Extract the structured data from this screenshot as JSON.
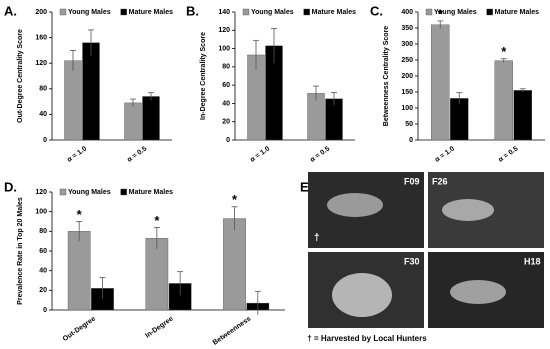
{
  "chart_data": [
    {
      "type": "bar",
      "label": "A.",
      "y_label": "Out-Degree Centrality Score",
      "categories": [
        "α = 1.0",
        "α = 0.5"
      ],
      "series": [
        {
          "name": "Young Males",
          "color": "#9a9a9a",
          "values": [
            124,
            58
          ],
          "errors": [
            16,
            6
          ]
        },
        {
          "name": "Mature Males",
          "color": "#000000",
          "values": [
            152,
            68
          ],
          "errors": [
            20,
            6
          ]
        }
      ],
      "ylim": [
        0,
        200
      ],
      "yticks": [
        0,
        40,
        80,
        120,
        160,
        200
      ]
    },
    {
      "type": "bar",
      "label": "B.",
      "y_label": "In-Degree Centrality Score",
      "categories": [
        "α = 1.0",
        "α = 0.5"
      ],
      "series": [
        {
          "name": "Young Males",
          "color": "#9a9a9a",
          "values": [
            93,
            51
          ],
          "errors": [
            16,
            8
          ]
        },
        {
          "name": "Mature Males",
          "color": "#000000",
          "values": [
            103,
            45
          ],
          "errors": [
            19,
            7
          ]
        }
      ],
      "ylim": [
        0,
        140
      ],
      "yticks": [
        0,
        20,
        40,
        60,
        80,
        100,
        120,
        140
      ]
    },
    {
      "type": "bar",
      "label": "C.",
      "y_label": "Betweenness Centrality Score",
      "categories": [
        "α = 1.0",
        "α = 0.5"
      ],
      "series": [
        {
          "name": "Young Males",
          "color": "#9a9a9a",
          "values": [
            360,
            248
          ],
          "errors": [
            12,
            6
          ],
          "annotations": [
            "*",
            "*"
          ]
        },
        {
          "name": "Mature Males",
          "color": "#000000",
          "values": [
            130,
            155
          ],
          "errors": [
            18,
            5
          ]
        }
      ],
      "ylim": [
        0,
        400
      ],
      "yticks": [
        0,
        50,
        100,
        150,
        200,
        250,
        300,
        350,
        400
      ]
    },
    {
      "type": "bar",
      "label": "D.",
      "y_label": "Prevalence Rate in Top 20 Males",
      "categories": [
        "Out-Degree",
        "In-Degree",
        "Betweenness"
      ],
      "series": [
        {
          "name": "Young Males",
          "color": "#9a9a9a",
          "values": [
            80,
            73,
            93
          ],
          "errors": [
            10,
            11,
            12
          ],
          "annotations": [
            "*",
            "*",
            "*"
          ]
        },
        {
          "name": "Mature Males",
          "color": "#000000",
          "values": [
            22,
            27,
            7
          ],
          "errors": [
            11,
            12,
            12
          ]
        }
      ],
      "ylim": [
        0,
        120
      ],
      "yticks": [
        0,
        20,
        40,
        60,
        80,
        100,
        120
      ]
    }
  ],
  "photo_panel": {
    "label": "E.",
    "photos": [
      {
        "id": "F09",
        "mark": "†"
      },
      {
        "id": "F26"
      },
      {
        "id": "F30"
      },
      {
        "id": "H18"
      }
    ],
    "caption": "† = Harvested by Local Hunters"
  }
}
